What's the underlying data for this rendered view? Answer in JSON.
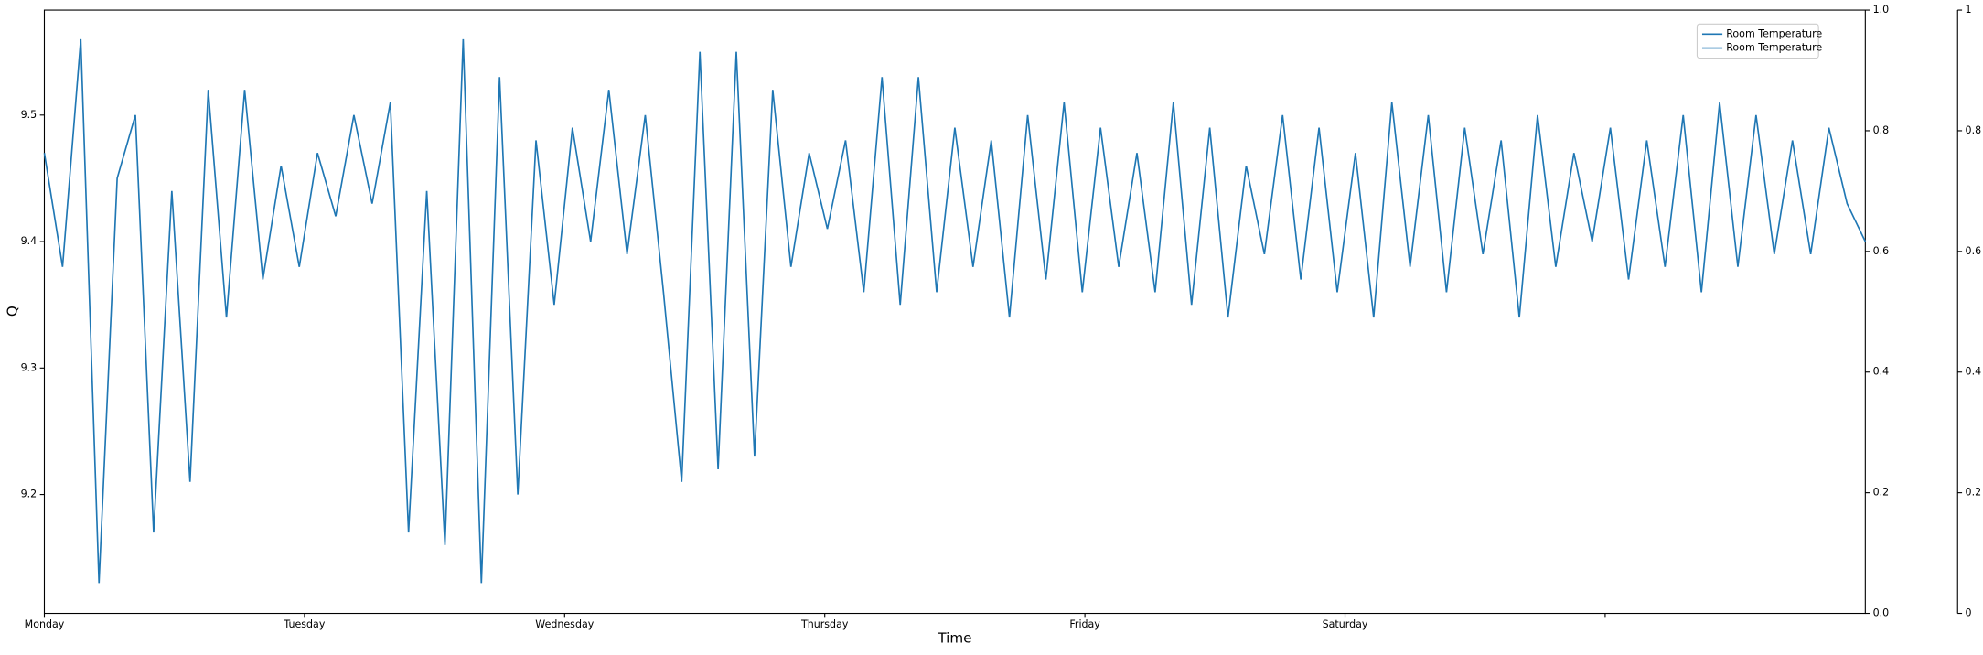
{
  "chart_data": {
    "type": "line",
    "x_label": "Time",
    "y_label": "Q",
    "x": [
      0,
      0.07,
      0.14,
      0.21,
      0.28,
      0.35,
      0.42,
      0.49,
      0.56,
      0.63,
      0.7,
      0.77,
      0.84,
      0.91,
      0.98,
      1.05,
      1.12,
      1.19,
      1.26,
      1.33,
      1.4,
      1.47,
      1.54,
      1.61,
      1.68,
      1.75,
      1.82,
      1.89,
      1.96,
      2.03,
      2.1,
      2.17,
      2.24,
      2.31,
      2.38,
      2.45,
      2.52,
      2.59,
      2.66,
      2.73,
      2.8,
      2.87,
      2.94,
      3.01,
      3.08,
      3.15,
      3.22,
      3.29,
      3.36,
      3.43,
      3.5,
      3.57,
      3.64,
      3.71,
      3.78,
      3.85,
      3.92,
      3.99,
      4.06,
      4.13,
      4.2,
      4.27,
      4.34,
      4.41,
      4.48,
      4.55,
      4.62,
      4.69,
      4.76,
      4.83,
      4.9,
      4.97,
      5.04,
      5.11,
      5.18,
      5.25,
      5.32,
      5.39,
      5.46,
      5.53,
      5.6,
      5.67,
      5.74,
      5.81,
      5.88,
      5.95,
      6.02,
      6.09,
      6.16,
      6.23,
      6.3,
      6.37,
      6.44,
      6.51,
      6.58,
      6.65,
      6.72,
      6.79,
      6.86,
      6.93,
      7
    ],
    "series": [
      {
        "color": "#1f77b4",
        "values": [
          9.47,
          9.38,
          9.56,
          9.13,
          9.45,
          9.5,
          9.17,
          9.44,
          9.21,
          9.52,
          9.34,
          9.52,
          9.37,
          9.46,
          9.38,
          9.47,
          9.42,
          9.5,
          9.43,
          9.51,
          9.17,
          9.44,
          9.16,
          9.56,
          9.13,
          9.53,
          9.2,
          9.48,
          9.35,
          9.49,
          9.4,
          9.52,
          9.39,
          9.5,
          9.36,
          9.21,
          9.55,
          9.22,
          9.55,
          9.23,
          9.52,
          9.38,
          9.47,
          9.41,
          9.48,
          9.36,
          9.53,
          9.35,
          9.53,
          9.36,
          9.49,
          9.38,
          9.48,
          9.34,
          9.5,
          9.37,
          9.51,
          9.36,
          9.49,
          9.38,
          9.47,
          9.36,
          9.51,
          9.35,
          9.49,
          9.34,
          9.46,
          9.39,
          9.5,
          9.37,
          9.49,
          9.36,
          9.47,
          9.34,
          9.51,
          9.38,
          9.5,
          9.36,
          9.49,
          9.39,
          9.48,
          9.34,
          9.5,
          9.38,
          9.47,
          9.4,
          9.49,
          9.37,
          9.48,
          9.38,
          9.5,
          9.36,
          9.51,
          9.38,
          9.5,
          9.39,
          9.48,
          9.39,
          9.49,
          9.43,
          9.4
        ]
      }
    ],
    "legend": [
      "Room Temperature",
      "Room Temperature"
    ],
    "xlim": [
      0,
      7
    ],
    "xticks": [
      {
        "value": 0,
        "label": "Monday"
      },
      {
        "value": 1,
        "label": "Tuesday"
      },
      {
        "value": 2,
        "label": "Wednesday"
      },
      {
        "value": 3,
        "label": "Thursday"
      },
      {
        "value": 4,
        "label": "Friday"
      },
      {
        "value": 5,
        "label": "Saturday"
      },
      {
        "value": 6,
        "label": null
      }
    ],
    "ylim": [
      9.106,
      9.583
    ],
    "yticks": [
      9.2,
      9.3,
      9.4,
      9.5
    ],
    "y2lim": [
      0,
      1
    ],
    "y2ticks": [
      {
        "value": 0,
        "label": "0.0"
      },
      0.2,
      0.4,
      0.6,
      0.8,
      {
        "value": 1,
        "label": "1.0"
      }
    ],
    "y3lim": [
      0,
      1
    ],
    "y3ticks": [
      0,
      0.2,
      0.4,
      0.6,
      0.8,
      1
    ]
  }
}
